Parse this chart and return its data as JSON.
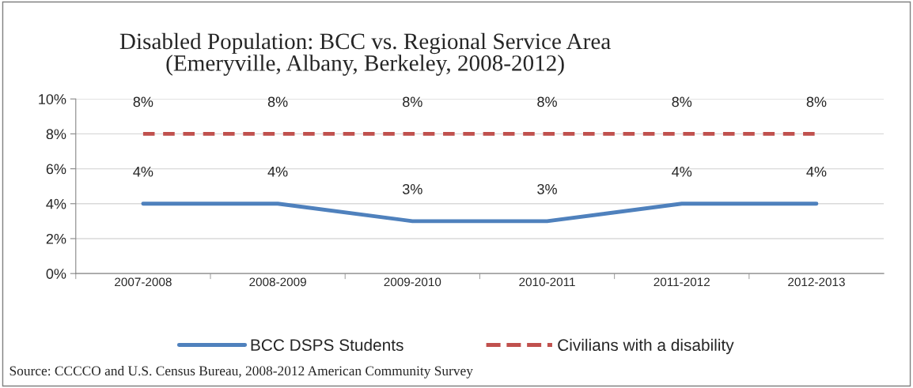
{
  "chart_data": {
    "type": "line",
    "title": "Disabled Population: BCC vs. Regional Service Area\n(Emeryville, Albany, Berkeley, 2008-2012)",
    "categories": [
      "2007-2008",
      "2008-2009",
      "2009-2010",
      "2010-2011",
      "2011-2012",
      "2012-2013"
    ],
    "series": [
      {
        "name": "BCC DSPS Students",
        "color": "#4f81bd",
        "line_style": "solid",
        "values": [
          4,
          4,
          3,
          3,
          4,
          4
        ],
        "value_labels": [
          "4%",
          "4%",
          "3%",
          "3%",
          "4%",
          "4%"
        ]
      },
      {
        "name": "Civilians with a disability",
        "color": "#c0504d",
        "line_style": "dashed",
        "values": [
          8,
          8,
          8,
          8,
          8,
          8
        ],
        "value_labels": [
          "8%",
          "8%",
          "8%",
          "8%",
          "8%",
          "8%"
        ]
      }
    ],
    "ylim": [
      0,
      10
    ],
    "yticks": [
      {
        "value": 0,
        "label": "0%"
      },
      {
        "value": 2,
        "label": "2%"
      },
      {
        "value": 4,
        "label": "4%"
      },
      {
        "value": 6,
        "label": "6%"
      },
      {
        "value": 8,
        "label": "8%"
      },
      {
        "value": 10,
        "label": "10%"
      }
    ],
    "grid": "y",
    "legend": "bottom",
    "marker": "none",
    "annotations": [
      "Source: CCCCO and U.S. Census Bureau, 2008-2012 American Community Survey"
    ]
  }
}
